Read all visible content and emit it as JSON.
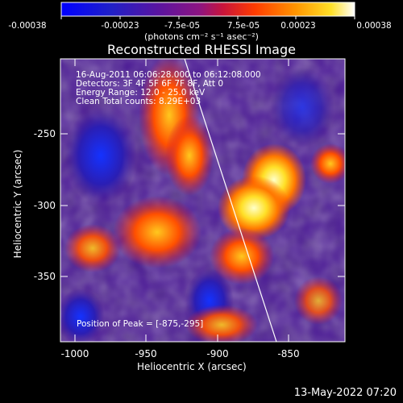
{
  "colorbar": {
    "ticks": [
      "-0.00038",
      "-0.00023",
      "-7.5e-05",
      "7.5e-05",
      "0.00023",
      "0.00038"
    ],
    "units": "(photons cm⁻² s⁻¹ asec⁻²)"
  },
  "title": "Reconstructed RHESSI Image",
  "info_lines": [
    "16-Aug-2011 06:06:28.000 to 06:12:08.000",
    "Detectors: 3F 4F 5F 6F 7F 8F, Att 0",
    "Energy Range: 12.0 - 25.0 keV",
    "Clean    Total counts: 8.29E+03"
  ],
  "peak_text": "Position of Peak = [-875,-295]",
  "x_axis": {
    "label": "Heliocentric X (arcsec)",
    "ticks": [
      "-1000",
      "-950",
      "-900",
      "-850"
    ]
  },
  "y_axis": {
    "label": "Heliocentric Y (arcsec)",
    "ticks": [
      "-250",
      "-300",
      "-350"
    ]
  },
  "footer": "13-May-2022 07:20"
}
